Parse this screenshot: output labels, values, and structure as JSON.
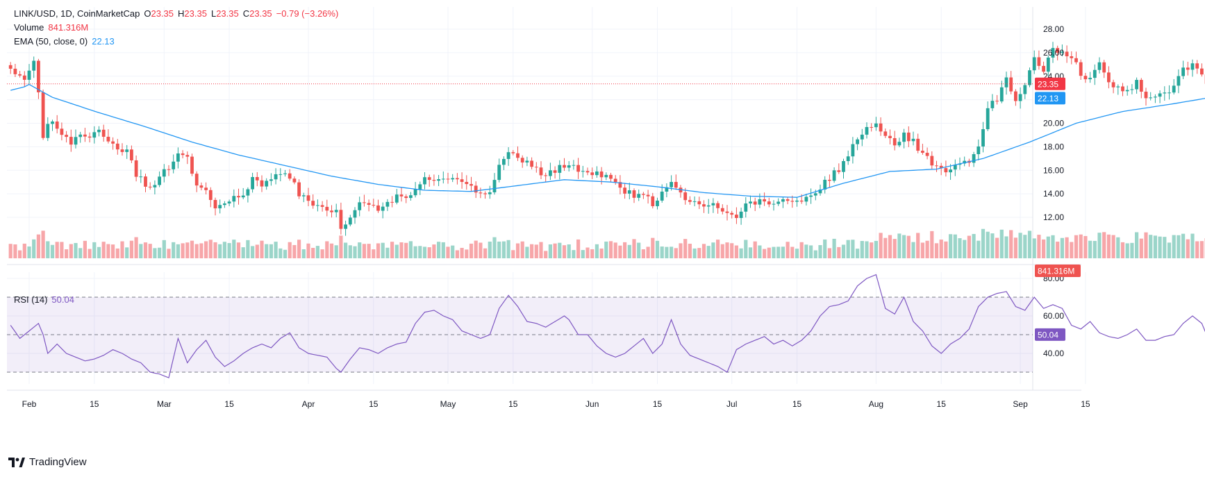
{
  "header": {
    "symbol": "LINK/USD, 1D, CoinMarketCap",
    "o_label": "O",
    "o_value": "23.35",
    "h_label": "H",
    "h_value": "23.35",
    "l_label": "L",
    "l_value": "23.35",
    "c_label": "C",
    "c_value": "23.35",
    "change": "−0.79 (−3.26%)",
    "volume_label": "Volume",
    "volume_value": "841.316M",
    "ema_label": "EMA (50, close, 0)",
    "ema_value": "22.13",
    "rsi_label": "RSI (14)",
    "rsi_value": "50.04"
  },
  "branding": {
    "name": "TradingView"
  },
  "colors": {
    "up": "#26a69a",
    "down": "#ef5350",
    "ema": "#2196f3",
    "rsi": "#7e57c2",
    "last_price": "#f23645",
    "volume_up": "#9bd5c9",
    "volume_down": "#f7a6a9"
  },
  "chart_data": {
    "type": "candlestick",
    "price_ticks": [
      "12.00",
      "14.00",
      "16.00",
      "18.00",
      "20.00",
      "22.00",
      "24.00",
      "26.00",
      "28.00"
    ],
    "price_ylim": [
      10.5,
      28.8
    ],
    "last_price": 23.35,
    "last_price_label": "23.35",
    "ema_last_label": "22.13",
    "volume_last_label": "841.316M",
    "rsi_ticks": [
      "40.00",
      "60.00",
      "80.00"
    ],
    "rsi_ylim": [
      25,
      88
    ],
    "rsi_bands": [
      30,
      50,
      70
    ],
    "rsi_last_label": "50.04",
    "x_ticks": [
      {
        "label": "Feb",
        "day": 0
      },
      {
        "label": "15",
        "day": 14
      },
      {
        "label": "Mar",
        "day": 29
      },
      {
        "label": "15",
        "day": 43
      },
      {
        "label": "Apr",
        "day": 60
      },
      {
        "label": "15",
        "day": 74
      },
      {
        "label": "May",
        "day": 90
      },
      {
        "label": "15",
        "day": 104
      },
      {
        "label": "Jun",
        "day": 121
      },
      {
        "label": "15",
        "day": 135
      },
      {
        "label": "Jul",
        "day": 151
      },
      {
        "label": "15",
        "day": 165
      },
      {
        "label": "Aug",
        "day": 182
      },
      {
        "label": "15",
        "day": 196
      },
      {
        "label": "Sep",
        "day": 213
      },
      {
        "label": "15",
        "day": 227
      }
    ],
    "start_day": -4,
    "anchors": [
      [
        -4,
        24.8
      ],
      [
        -1,
        23.5
      ],
      [
        1,
        25.2
      ],
      [
        2,
        22.6
      ],
      [
        3,
        19.0
      ],
      [
        5,
        20.3
      ],
      [
        7,
        18.8
      ],
      [
        9,
        18.3
      ],
      [
        11,
        18.9
      ],
      [
        13,
        18.6
      ],
      [
        15,
        19.3
      ],
      [
        17,
        18.6
      ],
      [
        19,
        17.8
      ],
      [
        21,
        17.8
      ],
      [
        23,
        15.6
      ],
      [
        26,
        14.4
      ],
      [
        28,
        15.3
      ],
      [
        30,
        16.3
      ],
      [
        32,
        17.4
      ],
      [
        34,
        17.0
      ],
      [
        36,
        14.8
      ],
      [
        38,
        14.3
      ],
      [
        40,
        12.9
      ],
      [
        42,
        13.2
      ],
      [
        44,
        13.9
      ],
      [
        46,
        14.0
      ],
      [
        48,
        15.2
      ],
      [
        50,
        14.5
      ],
      [
        52,
        15.3
      ],
      [
        54,
        15.9
      ],
      [
        56,
        15.5
      ],
      [
        58,
        13.9
      ],
      [
        60,
        13.5
      ],
      [
        62,
        13.0
      ],
      [
        64,
        12.8
      ],
      [
        66,
        12.5
      ],
      [
        67,
        11.3
      ],
      [
        69,
        12.0
      ],
      [
        71,
        13.3
      ],
      [
        73,
        13.2
      ],
      [
        75,
        12.7
      ],
      [
        77,
        13.1
      ],
      [
        79,
        13.7
      ],
      [
        81,
        13.9
      ],
      [
        83,
        14.2
      ],
      [
        85,
        15.3
      ],
      [
        87,
        15.1
      ],
      [
        89,
        15.1
      ],
      [
        91,
        15.2
      ],
      [
        93,
        14.9
      ],
      [
        95,
        14.4
      ],
      [
        97,
        14.0
      ],
      [
        99,
        14.3
      ],
      [
        101,
        16.5
      ],
      [
        103,
        17.3
      ],
      [
        105,
        17.1
      ],
      [
        107,
        16.8
      ],
      [
        109,
        16.0
      ],
      [
        111,
        15.5
      ],
      [
        113,
        15.9
      ],
      [
        115,
        16.5
      ],
      [
        116,
        16.6
      ],
      [
        118,
        15.8
      ],
      [
        120,
        15.7
      ],
      [
        122,
        15.8
      ],
      [
        124,
        15.6
      ],
      [
        126,
        15.2
      ],
      [
        128,
        14.1
      ],
      [
        130,
        13.9
      ],
      [
        132,
        14.0
      ],
      [
        134,
        13.1
      ],
      [
        136,
        14.2
      ],
      [
        138,
        15.2
      ],
      [
        140,
        14.3
      ],
      [
        142,
        13.2
      ],
      [
        144,
        13.3
      ],
      [
        146,
        13.0
      ],
      [
        148,
        12.9
      ],
      [
        150,
        12.2
      ],
      [
        152,
        12.1
      ],
      [
        154,
        13.1
      ],
      [
        156,
        13.3
      ],
      [
        158,
        13.4
      ],
      [
        160,
        13.1
      ],
      [
        162,
        13.6
      ],
      [
        164,
        13.4
      ],
      [
        166,
        13.2
      ],
      [
        168,
        13.8
      ],
      [
        170,
        14.6
      ],
      [
        172,
        15.4
      ],
      [
        174,
        16.1
      ],
      [
        176,
        17.2
      ],
      [
        178,
        18.7
      ],
      [
        180,
        19.4
      ],
      [
        182,
        19.9
      ],
      [
        184,
        19.0
      ],
      [
        186,
        18.2
      ],
      [
        188,
        19.0
      ],
      [
        190,
        18.5
      ],
      [
        192,
        17.2
      ],
      [
        194,
        16.7
      ],
      [
        196,
        16.1
      ],
      [
        198,
        16.0
      ],
      [
        200,
        16.4
      ],
      [
        202,
        16.8
      ],
      [
        204,
        18.2
      ],
      [
        206,
        21.3
      ],
      [
        208,
        22.1
      ],
      [
        210,
        23.6
      ],
      [
        212,
        22.0
      ],
      [
        214,
        23.1
      ],
      [
        216,
        25.6
      ],
      [
        218,
        24.6
      ],
      [
        220,
        26.2
      ],
      [
        222,
        25.9
      ],
      [
        224,
        25.8
      ],
      [
        226,
        24.1
      ],
      [
        228,
        23.8
      ],
      [
        230,
        24.9
      ],
      [
        232,
        23.5
      ],
      [
        234,
        23.0
      ],
      [
        236,
        22.6
      ],
      [
        238,
        23.4
      ],
      [
        240,
        22.4
      ],
      [
        242,
        22.1
      ],
      [
        244,
        22.7
      ],
      [
        246,
        23.1
      ],
      [
        248,
        24.6
      ],
      [
        250,
        25.1
      ],
      [
        252,
        24.2
      ],
      [
        253,
        23.35
      ]
    ],
    "ema_anchors": [
      [
        -4,
        22.8
      ],
      [
        -1,
        23.1
      ],
      [
        0,
        23.3
      ],
      [
        5,
        22.2
      ],
      [
        15,
        20.9
      ],
      [
        25,
        19.7
      ],
      [
        35,
        18.4
      ],
      [
        45,
        17.3
      ],
      [
        55,
        16.4
      ],
      [
        65,
        15.5
      ],
      [
        75,
        14.8
      ],
      [
        85,
        14.3
      ],
      [
        95,
        14.2
      ],
      [
        105,
        14.7
      ],
      [
        115,
        15.2
      ],
      [
        125,
        15.0
      ],
      [
        135,
        14.6
      ],
      [
        145,
        14.1
      ],
      [
        155,
        13.8
      ],
      [
        165,
        13.7
      ],
      [
        175,
        14.9
      ],
      [
        185,
        15.9
      ],
      [
        195,
        16.1
      ],
      [
        205,
        17.0
      ],
      [
        215,
        18.4
      ],
      [
        225,
        20.0
      ],
      [
        235,
        21.0
      ],
      [
        245,
        21.6
      ],
      [
        253,
        22.13
      ]
    ],
    "rsi_anchors": [
      [
        -4,
        55
      ],
      [
        -2,
        48
      ],
      [
        0,
        52
      ],
      [
        2,
        56
      ],
      [
        3,
        50
      ],
      [
        4,
        40
      ],
      [
        6,
        45
      ],
      [
        8,
        40
      ],
      [
        10,
        38
      ],
      [
        12,
        36
      ],
      [
        14,
        37
      ],
      [
        16,
        39
      ],
      [
        18,
        42
      ],
      [
        20,
        40
      ],
      [
        22,
        37
      ],
      [
        24,
        35
      ],
      [
        26,
        30
      ],
      [
        28,
        29
      ],
      [
        30,
        27
      ],
      [
        32,
        48
      ],
      [
        34,
        35
      ],
      [
        36,
        42
      ],
      [
        38,
        47
      ],
      [
        40,
        38
      ],
      [
        42,
        33
      ],
      [
        44,
        36
      ],
      [
        46,
        40
      ],
      [
        48,
        43
      ],
      [
        50,
        45
      ],
      [
        52,
        43
      ],
      [
        54,
        48
      ],
      [
        56,
        51
      ],
      [
        58,
        43
      ],
      [
        60,
        40
      ],
      [
        62,
        39
      ],
      [
        64,
        38
      ],
      [
        66,
        32
      ],
      [
        67,
        30
      ],
      [
        69,
        37
      ],
      [
        71,
        43
      ],
      [
        73,
        42
      ],
      [
        75,
        40
      ],
      [
        77,
        43
      ],
      [
        79,
        45
      ],
      [
        81,
        46
      ],
      [
        83,
        56
      ],
      [
        85,
        62
      ],
      [
        87,
        63
      ],
      [
        89,
        60
      ],
      [
        91,
        58
      ],
      [
        93,
        52
      ],
      [
        95,
        50
      ],
      [
        97,
        48
      ],
      [
        99,
        50
      ],
      [
        101,
        64
      ],
      [
        103,
        71
      ],
      [
        105,
        65
      ],
      [
        107,
        57
      ],
      [
        109,
        56
      ],
      [
        111,
        54
      ],
      [
        113,
        57
      ],
      [
        115,
        60
      ],
      [
        116,
        58
      ],
      [
        118,
        50
      ],
      [
        120,
        50
      ],
      [
        122,
        44
      ],
      [
        124,
        40
      ],
      [
        126,
        38
      ],
      [
        128,
        40
      ],
      [
        130,
        44
      ],
      [
        132,
        48
      ],
      [
        134,
        40
      ],
      [
        136,
        45
      ],
      [
        138,
        58
      ],
      [
        140,
        45
      ],
      [
        142,
        39
      ],
      [
        144,
        37
      ],
      [
        146,
        35
      ],
      [
        148,
        33
      ],
      [
        150,
        30
      ],
      [
        152,
        42
      ],
      [
        154,
        45
      ],
      [
        156,
        47
      ],
      [
        158,
        49
      ],
      [
        160,
        45
      ],
      [
        162,
        47
      ],
      [
        164,
        44
      ],
      [
        166,
        47
      ],
      [
        168,
        52
      ],
      [
        170,
        60
      ],
      [
        172,
        65
      ],
      [
        174,
        66
      ],
      [
        176,
        68
      ],
      [
        178,
        76
      ],
      [
        180,
        80
      ],
      [
        182,
        82
      ],
      [
        184,
        64
      ],
      [
        186,
        61
      ],
      [
        188,
        70
      ],
      [
        190,
        57
      ],
      [
        192,
        52
      ],
      [
        194,
        44
      ],
      [
        196,
        40
      ],
      [
        198,
        45
      ],
      [
        200,
        48
      ],
      [
        202,
        53
      ],
      [
        204,
        65
      ],
      [
        206,
        70
      ],
      [
        208,
        72
      ],
      [
        210,
        73
      ],
      [
        212,
        65
      ],
      [
        214,
        63
      ],
      [
        216,
        70
      ],
      [
        218,
        64
      ],
      [
        220,
        66
      ],
      [
        222,
        64
      ],
      [
        224,
        55
      ],
      [
        226,
        53
      ],
      [
        228,
        57
      ],
      [
        230,
        51
      ],
      [
        232,
        49
      ],
      [
        234,
        48
      ],
      [
        236,
        50
      ],
      [
        238,
        53
      ],
      [
        240,
        47
      ],
      [
        242,
        47
      ],
      [
        244,
        49
      ],
      [
        246,
        50
      ],
      [
        248,
        56
      ],
      [
        250,
        60
      ],
      [
        252,
        56
      ],
      [
        253,
        50.04
      ]
    ]
  }
}
